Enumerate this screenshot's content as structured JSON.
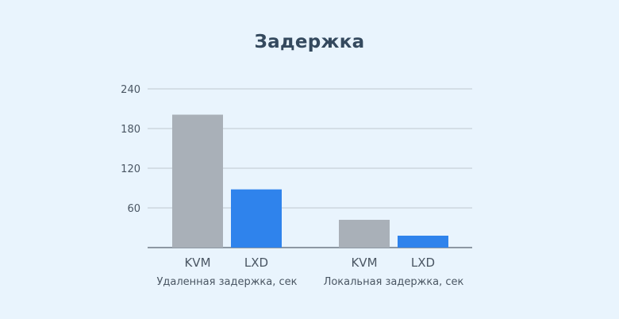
{
  "chart_data": {
    "type": "bar",
    "title": "Задержка",
    "yticks": [
      60,
      120,
      180,
      240
    ],
    "ylim": [
      0,
      240
    ],
    "grid": true,
    "groups": [
      {
        "label": "Удаленная задержка, сек",
        "bars": [
          {
            "category": "KVM",
            "value": 201
          },
          {
            "category": "LXD",
            "value": 88
          }
        ]
      },
      {
        "label": "Локальная задержка, сек",
        "bars": [
          {
            "category": "KVM",
            "value": 42
          },
          {
            "category": "LXD",
            "value": 18
          }
        ]
      }
    ],
    "colors": {
      "KVM": "#a9b0b8",
      "LXD": "#2f83ec",
      "grid": "#c8d0d8",
      "axis": "#6f7a85"
    }
  }
}
